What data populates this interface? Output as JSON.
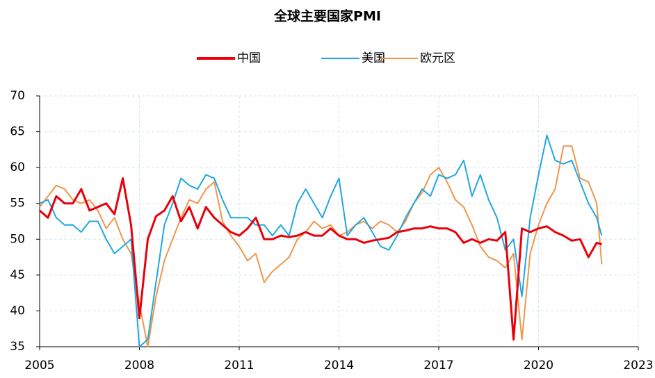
{
  "chart_data": {
    "type": "line",
    "title": "全球主要国家PMI",
    "x": [
      2005,
      2005.25,
      2005.5,
      2005.75,
      2006,
      2006.25,
      2006.5,
      2006.75,
      2007,
      2007.25,
      2007.5,
      2007.75,
      2008,
      2008.25,
      2008.5,
      2008.75,
      2009,
      2009.25,
      2009.5,
      2009.75,
      2010,
      2010.25,
      2010.5,
      2010.75,
      2011,
      2011.25,
      2011.5,
      2011.75,
      2012,
      2012.25,
      2012.5,
      2012.75,
      2013,
      2013.25,
      2013.5,
      2013.75,
      2014,
      2014.25,
      2014.5,
      2014.75,
      2015,
      2015.25,
      2015.5,
      2015.75,
      2016,
      2016.25,
      2016.5,
      2016.75,
      2017,
      2017.25,
      2017.5,
      2017.75,
      2018,
      2018.25,
      2018.5,
      2018.75,
      2019,
      2019.25,
      2019.5,
      2019.75,
      2020,
      2020.25,
      2020.5,
      2020.75,
      2021,
      2021.25,
      2021.5,
      2021.75,
      2021.9
    ],
    "series": [
      {
        "name": "中国",
        "color": "#e8000b",
        "values": [
          54,
          53,
          56,
          55,
          55,
          57,
          54,
          54.5,
          55,
          53.5,
          58.5,
          52,
          39,
          50,
          53.2,
          54,
          56,
          52.5,
          54.5,
          51.5,
          54.5,
          53,
          52,
          51,
          50.5,
          51.5,
          53,
          50,
          50,
          50.5,
          50.3,
          50.5,
          51,
          50.5,
          50.5,
          51.5,
          50.5,
          50,
          50,
          49.5,
          49.8,
          50,
          50.2,
          51,
          51.2,
          51.5,
          51.5,
          51.8,
          51.5,
          51.5,
          51,
          49.5,
          50,
          49.5,
          50,
          49.8,
          51,
          36,
          51.5,
          51,
          51.5,
          51.8,
          51,
          50.5,
          49.8,
          50,
          47.5,
          49.5,
          49.3
        ]
      },
      {
        "name": "美国",
        "color": "#1fa7e0",
        "values": [
          55,
          55.5,
          53,
          52,
          52,
          51,
          52.5,
          52.5,
          50,
          48,
          49,
          50,
          35,
          36,
          44,
          52,
          55,
          58.5,
          57.5,
          57,
          59,
          58.5,
          55.5,
          53,
          53,
          53,
          52,
          52,
          50.5,
          52,
          50.5,
          55,
          57,
          55,
          53,
          56,
          58.5,
          50.5,
          52,
          53,
          51,
          49,
          48.5,
          50.5,
          53,
          55,
          57,
          56,
          59,
          58.5,
          59,
          61,
          56,
          59,
          55.5,
          53,
          48.5,
          50,
          42,
          53,
          59,
          64.5,
          61,
          60.5,
          61,
          58,
          55,
          53,
          50.5
        ]
      },
      {
        "name": "欧元区",
        "color": "#f0964a",
        "values": [
          54.5,
          56,
          57.5,
          57,
          55.5,
          55,
          55.5,
          54,
          51.5,
          53,
          50,
          48,
          41,
          35,
          42,
          47,
          50,
          53,
          55.5,
          55,
          57,
          58,
          52.5,
          50.5,
          49,
          47,
          48,
          44,
          45.5,
          46.5,
          47.5,
          50,
          51,
          52.5,
          51.5,
          52,
          50.5,
          51,
          52,
          52.5,
          51.5,
          52.5,
          52,
          51,
          52.5,
          55,
          56.5,
          59,
          60,
          58,
          55.5,
          54.5,
          52,
          49,
          47.5,
          47,
          46,
          48,
          36,
          48,
          52,
          55,
          57,
          63,
          63,
          58.5,
          58,
          55,
          46.5
        ]
      }
    ],
    "xlim": [
      2005,
      2023
    ],
    "xticks": [
      2005,
      2008,
      2011,
      2014,
      2017,
      2020,
      2023
    ],
    "ylim": [
      35,
      70
    ],
    "yticks": [
      35,
      40,
      45,
      50,
      55,
      60,
      65,
      70
    ],
    "grid": true,
    "legend": "top"
  }
}
